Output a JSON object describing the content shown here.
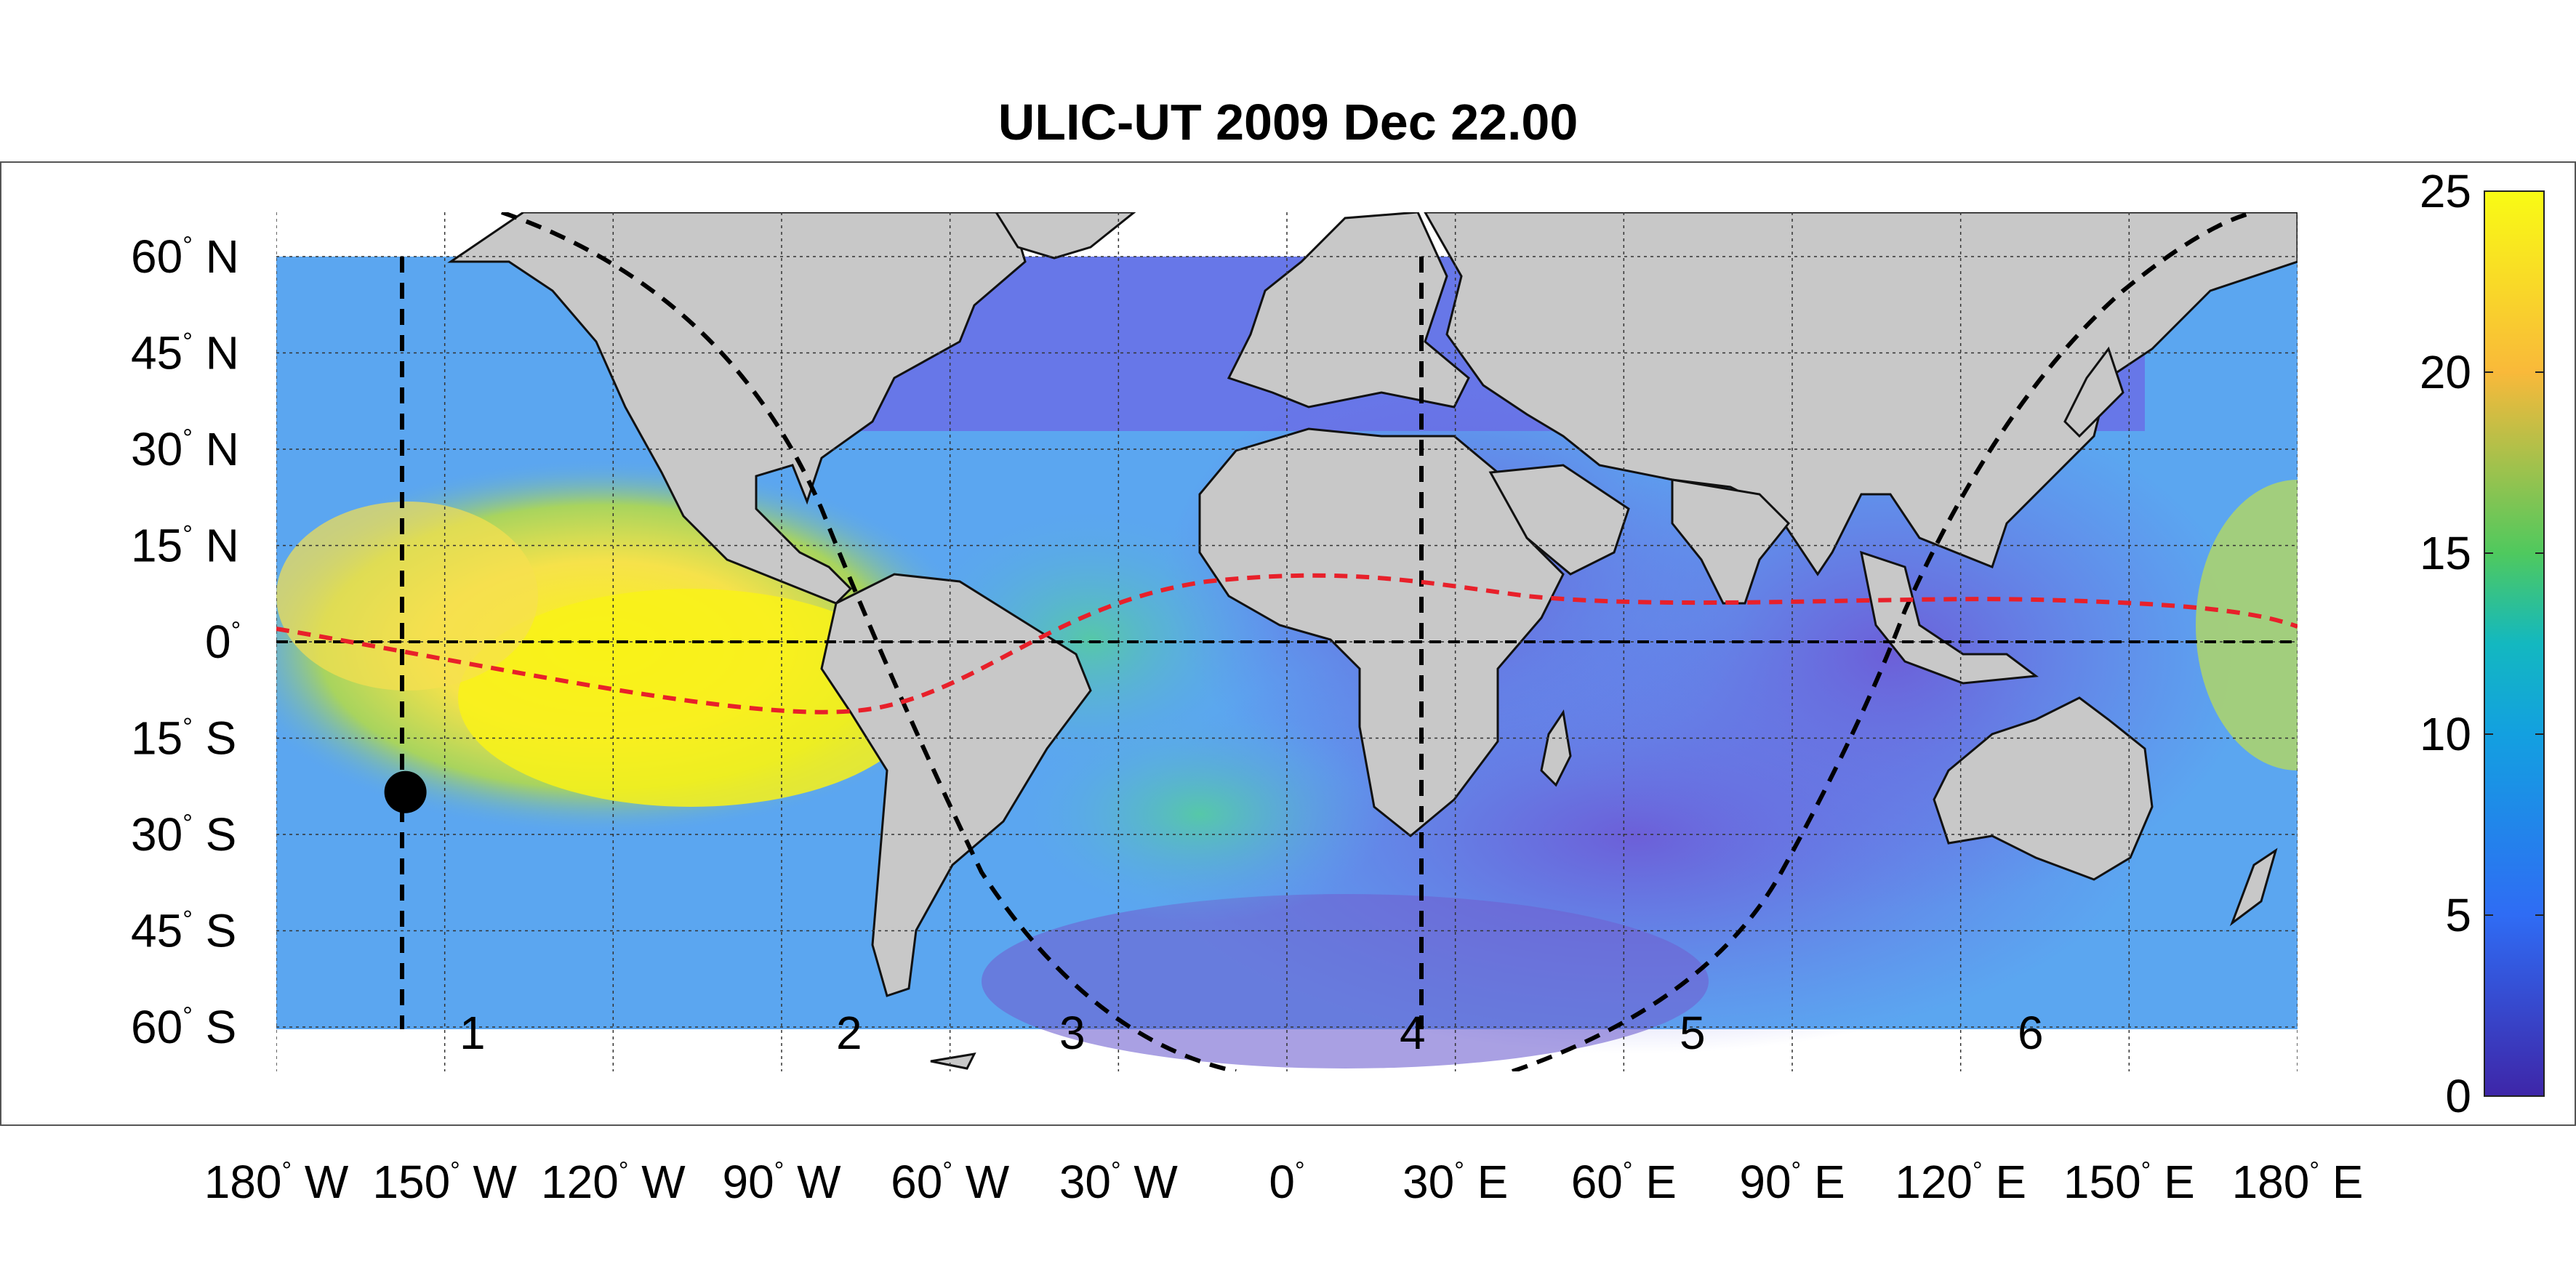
{
  "title": "ULIC-UT 2009 Dec 22.00",
  "lat_tick_labels": [
    {
      "value": "60",
      "dir": "N"
    },
    {
      "value": "45",
      "dir": "N"
    },
    {
      "value": "30",
      "dir": "N"
    },
    {
      "value": "15",
      "dir": "N"
    },
    {
      "value": "0",
      "dir": ""
    },
    {
      "value": "15",
      "dir": "S"
    },
    {
      "value": "30",
      "dir": "S"
    },
    {
      "value": "45",
      "dir": "S"
    },
    {
      "value": "60",
      "dir": "S"
    }
  ],
  "lon_tick_labels": [
    {
      "value": "180",
      "dir": "W"
    },
    {
      "value": "150",
      "dir": "W"
    },
    {
      "value": "120",
      "dir": "W"
    },
    {
      "value": "90",
      "dir": "W"
    },
    {
      "value": "60",
      "dir": "W"
    },
    {
      "value": "30",
      "dir": "W"
    },
    {
      "value": "0",
      "dir": ""
    },
    {
      "value": "30",
      "dir": "E"
    },
    {
      "value": "60",
      "dir": "E"
    },
    {
      "value": "90",
      "dir": "E"
    },
    {
      "value": "120",
      "dir": "E"
    },
    {
      "value": "150",
      "dir": "E"
    },
    {
      "value": "180",
      "dir": "E"
    }
  ],
  "colorbar": {
    "ticks": [
      "0",
      "5",
      "10",
      "15",
      "20",
      "25"
    ],
    "range": [
      0,
      25
    ],
    "colors": [
      "#3e26a8",
      "#2f6cf4",
      "#13b0d0",
      "#4fc95e",
      "#f9b93a",
      "#f9fb14"
    ]
  },
  "line_numbers": [
    "1",
    "2",
    "3",
    "4",
    "5",
    "6"
  ],
  "subsolar_point": {
    "lon": -157,
    "lat": -23.4
  },
  "colors": {
    "land": "#c8c8c8",
    "ocean_low": "#6a6fe6",
    "ocean_mid": "#5ba6f0",
    "ocean_high": "#f4e85a",
    "terminator_lines": "#000000",
    "equator_curve": "#e8202a"
  },
  "map": {
    "lon_range": [
      -180,
      180
    ],
    "lat_range": [
      -60,
      60
    ],
    "grid": true
  }
}
